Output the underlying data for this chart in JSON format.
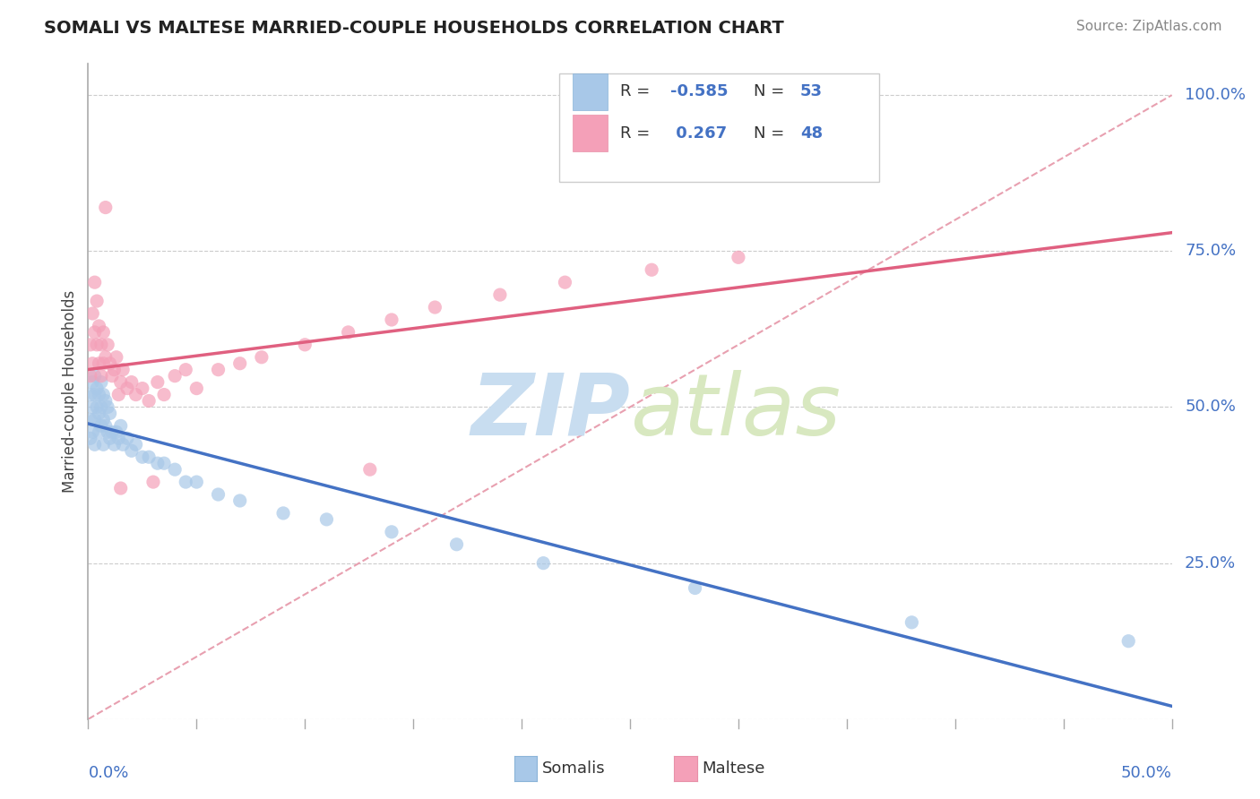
{
  "title": "SOMALI VS MALTESE MARRIED-COUPLE HOUSEHOLDS CORRELATION CHART",
  "source": "Source: ZipAtlas.com",
  "ylabel": "Married-couple Households",
  "xlim": [
    0.0,
    0.5
  ],
  "ylim": [
    0.0,
    1.05
  ],
  "somali_R": -0.585,
  "somali_N": 53,
  "maltese_R": 0.267,
  "maltese_N": 48,
  "somali_color": "#a8c8e8",
  "maltese_color": "#f4a0b8",
  "somali_line_color": "#4472c4",
  "maltese_line_color": "#e06080",
  "ref_line_color": "#e08090",
  "background_color": "#ffffff",
  "grid_color": "#cccccc",
  "watermark_color": "#dce8f5",
  "ytick_positions": [
    0.0,
    0.25,
    0.5,
    0.75,
    1.0
  ],
  "ytick_labels": [
    "",
    "25.0%",
    "50.0%",
    "75.0%",
    "100.0%"
  ],
  "legend_R_color": "#4472c4",
  "somali_x": [
    0.001,
    0.001,
    0.001,
    0.002,
    0.002,
    0.002,
    0.003,
    0.003,
    0.003,
    0.003,
    0.004,
    0.004,
    0.005,
    0.005,
    0.005,
    0.006,
    0.006,
    0.006,
    0.007,
    0.007,
    0.007,
    0.008,
    0.008,
    0.009,
    0.009,
    0.01,
    0.01,
    0.011,
    0.012,
    0.013,
    0.014,
    0.015,
    0.016,
    0.018,
    0.02,
    0.022,
    0.025,
    0.028,
    0.032,
    0.035,
    0.04,
    0.045,
    0.05,
    0.06,
    0.07,
    0.09,
    0.11,
    0.14,
    0.17,
    0.21,
    0.28,
    0.38,
    0.48
  ],
  "somali_y": [
    0.52,
    0.48,
    0.45,
    0.54,
    0.5,
    0.46,
    0.55,
    0.52,
    0.48,
    0.44,
    0.53,
    0.5,
    0.52,
    0.49,
    0.46,
    0.54,
    0.5,
    0.47,
    0.52,
    0.48,
    0.44,
    0.51,
    0.47,
    0.5,
    0.46,
    0.49,
    0.45,
    0.46,
    0.44,
    0.46,
    0.45,
    0.47,
    0.44,
    0.45,
    0.43,
    0.44,
    0.42,
    0.42,
    0.41,
    0.41,
    0.4,
    0.38,
    0.38,
    0.36,
    0.35,
    0.33,
    0.32,
    0.3,
    0.28,
    0.25,
    0.21,
    0.155,
    0.125
  ],
  "maltese_x": [
    0.001,
    0.001,
    0.002,
    0.002,
    0.003,
    0.003,
    0.004,
    0.004,
    0.005,
    0.005,
    0.006,
    0.006,
    0.007,
    0.007,
    0.008,
    0.009,
    0.01,
    0.011,
    0.012,
    0.013,
    0.014,
    0.015,
    0.016,
    0.018,
    0.02,
    0.022,
    0.025,
    0.028,
    0.032,
    0.035,
    0.04,
    0.045,
    0.05,
    0.06,
    0.07,
    0.08,
    0.1,
    0.12,
    0.14,
    0.16,
    0.19,
    0.22,
    0.26,
    0.3,
    0.13,
    0.03,
    0.015,
    0.008
  ],
  "maltese_y": [
    0.6,
    0.55,
    0.65,
    0.57,
    0.7,
    0.62,
    0.67,
    0.6,
    0.63,
    0.57,
    0.6,
    0.55,
    0.62,
    0.57,
    0.58,
    0.6,
    0.57,
    0.55,
    0.56,
    0.58,
    0.52,
    0.54,
    0.56,
    0.53,
    0.54,
    0.52,
    0.53,
    0.51,
    0.54,
    0.52,
    0.55,
    0.56,
    0.53,
    0.56,
    0.57,
    0.58,
    0.6,
    0.62,
    0.64,
    0.66,
    0.68,
    0.7,
    0.72,
    0.74,
    0.4,
    0.38,
    0.37,
    0.82
  ]
}
